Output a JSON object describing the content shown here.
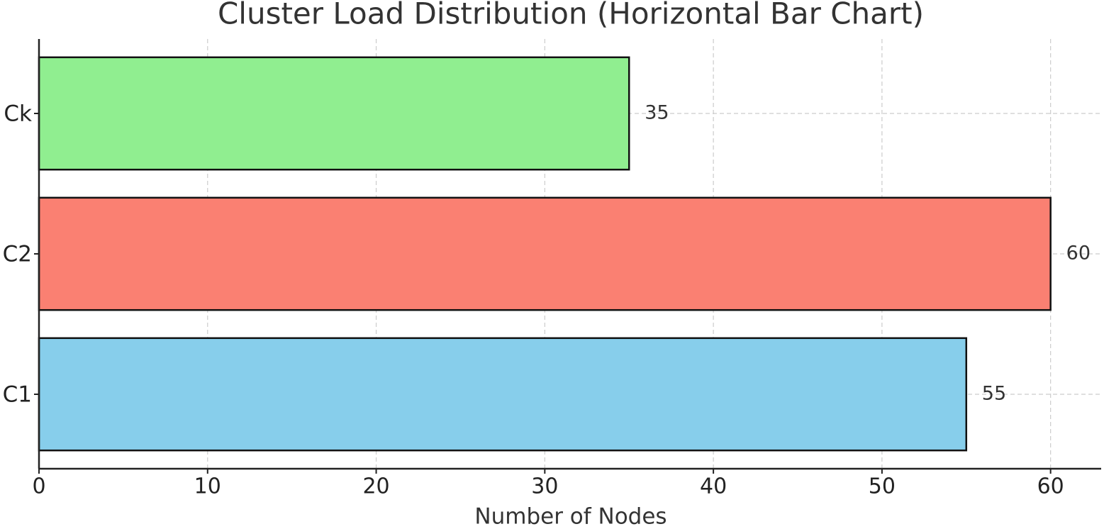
{
  "chart_data": {
    "type": "bar",
    "orientation": "horizontal",
    "title": "Cluster Load Distribution (Horizontal Bar Chart)",
    "categories": [
      "C1",
      "C2",
      "Ck"
    ],
    "values": [
      55,
      60,
      35
    ],
    "colors": [
      "#87ceeb",
      "#fa8072",
      "#90ee90"
    ],
    "xlabel": "Number of Nodes",
    "xlim": [
      0,
      63
    ],
    "xticks": [
      0,
      10,
      20,
      30,
      40,
      50,
      60
    ],
    "grid": true
  }
}
